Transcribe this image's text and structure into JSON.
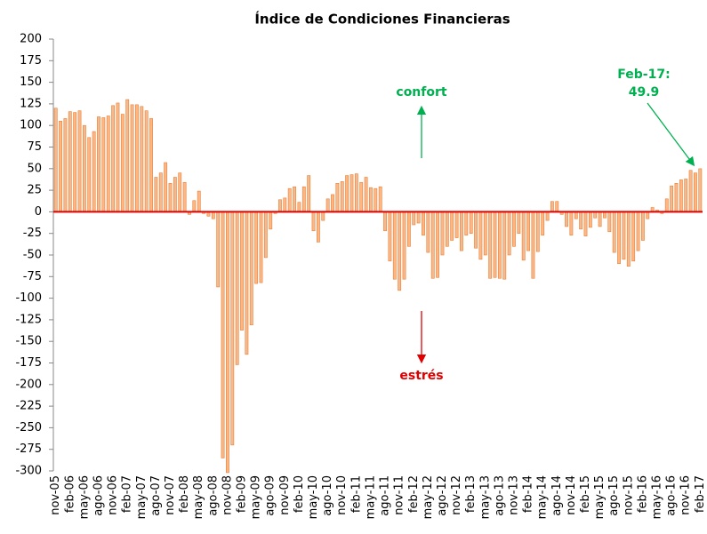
{
  "chart_data": {
    "type": "bar",
    "title": "Índice de Condiciones Financieras",
    "categories": [
      "nov-05",
      null,
      null,
      "feb-06",
      null,
      null,
      "may-06",
      null,
      null,
      "ago-06",
      null,
      null,
      "nov-06",
      null,
      null,
      "feb-07",
      null,
      null,
      "may-07",
      null,
      null,
      "ago-07",
      null,
      null,
      "nov-07",
      null,
      null,
      "feb-08",
      null,
      null,
      "may-08",
      null,
      null,
      "ago-08",
      null,
      null,
      "nov-08",
      null,
      null,
      "feb-09",
      null,
      null,
      "may-09",
      null,
      null,
      "ago-09",
      null,
      null,
      "nov-09",
      null,
      null,
      "feb-10",
      null,
      null,
      "may-10",
      null,
      null,
      "ago-10",
      null,
      null,
      "nov-10",
      null,
      null,
      "feb-11",
      null,
      null,
      "may-11",
      null,
      null,
      "ago-11",
      null,
      null,
      "nov-11",
      null,
      null,
      "feb-12",
      null,
      null,
      "may-12",
      null,
      null,
      "ago-12",
      null,
      null,
      "nov-12",
      null,
      null,
      "feb-13",
      null,
      null,
      "may-13",
      null,
      null,
      "ago-13",
      null,
      null,
      "nov-13",
      null,
      null,
      "feb-14",
      null,
      null,
      "may-14",
      null,
      null,
      "ago-14",
      null,
      null,
      "nov-14",
      null,
      null,
      "feb-15",
      null,
      null,
      "may-15",
      null,
      null,
      "ago-15",
      null,
      null,
      "nov-15",
      null,
      null,
      "feb-16",
      null,
      null,
      "may-16",
      null,
      null,
      "ago-16",
      null,
      null,
      "nov-16",
      null,
      null,
      "feb-17"
    ],
    "values": [
      120,
      105,
      108,
      116,
      115,
      117,
      100,
      86,
      93,
      110,
      109,
      111,
      123,
      126,
      113,
      130,
      124,
      124,
      122,
      117,
      108,
      40,
      45,
      57,
      33,
      40,
      45,
      34,
      -3,
      13,
      24,
      -2,
      -5,
      -8,
      -87,
      -285,
      -302,
      -270,
      -177,
      -137,
      -165,
      -131,
      -83,
      -82,
      -53,
      -20,
      -2,
      14,
      16,
      27,
      29,
      11,
      29,
      42,
      -22,
      -35,
      -10,
      15,
      20,
      33,
      35,
      42,
      43,
      44,
      34,
      40,
      28,
      27,
      29,
      -22,
      -57,
      -78,
      -91,
      -78,
      -40,
      -15,
      -13,
      -27,
      -47,
      -77,
      -76,
      -50,
      -40,
      -33,
      -30,
      -45,
      -27,
      -25,
      -42,
      -55,
      -50,
      -77,
      -76,
      -77,
      -78,
      -50,
      -40,
      -25,
      -56,
      -45,
      -77,
      -46,
      -27,
      -10,
      12,
      12,
      -3,
      -17,
      -27,
      -8,
      -20,
      -28,
      -18,
      -7,
      -17,
      -7,
      -23,
      -47,
      -60,
      -55,
      -63,
      -57,
      -45,
      -33,
      -8,
      5,
      2,
      -2,
      15,
      30,
      33,
      37,
      38,
      48,
      45,
      49.9
    ],
    "color": "#f8b98a",
    "edge_color": "#ed7d31",
    "zero_line_color": "#e00000",
    "ylim": [
      -300,
      200
    ],
    "yticks": [
      -300,
      -275,
      -250,
      -225,
      -200,
      -175,
      -150,
      -125,
      -100,
      -75,
      -50,
      -25,
      0,
      25,
      50,
      75,
      100,
      125,
      150,
      175,
      200
    ],
    "grid": false,
    "annotations": [
      {
        "text": "confort",
        "color": "#00b050"
      },
      {
        "text": "estrés",
        "color": "#e00000"
      },
      {
        "text": "Feb-17:",
        "color": "#00b050"
      }
    ]
  }
}
